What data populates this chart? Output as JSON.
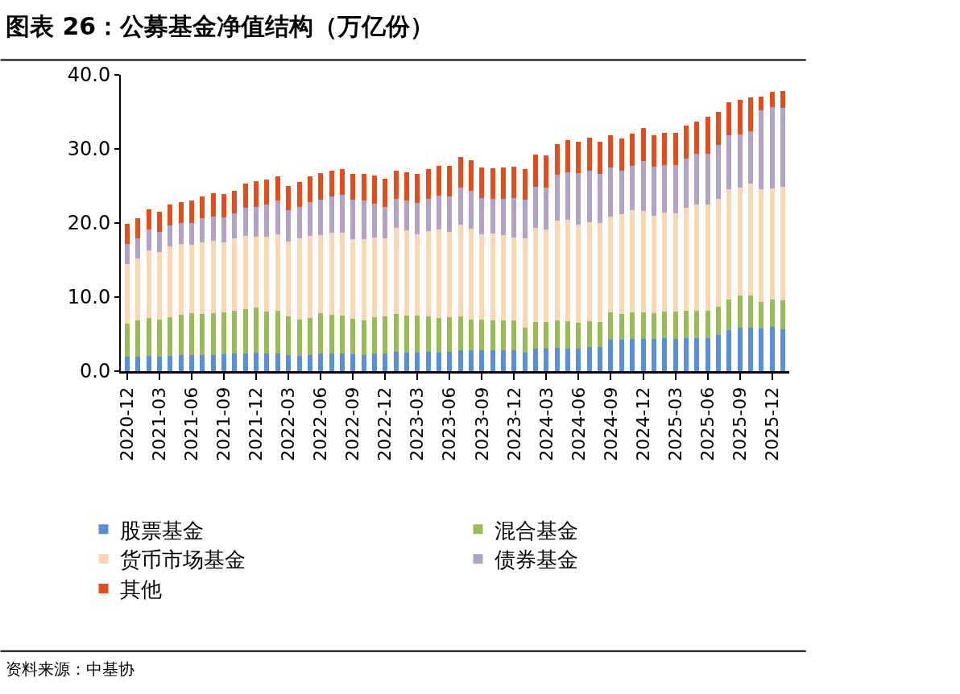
{
  "chart_data": {
    "type": "bar",
    "stacked": true,
    "title": "图表 26：公募基金净值结构（万亿份）",
    "annotations": [
      "资料来源：中基协"
    ],
    "categories": [
      "2020-12",
      null,
      null,
      "2021-03",
      null,
      null,
      "2021-06",
      null,
      null,
      "2021-09",
      null,
      null,
      "2021-12",
      null,
      null,
      "2022-03",
      null,
      null,
      "2022-06",
      null,
      null,
      "2022-09",
      null,
      null,
      "2022-12",
      null,
      null,
      "2023-03",
      null,
      null,
      "2023-06",
      null,
      null,
      "2023-09",
      null,
      null,
      "2023-12",
      null,
      null,
      "2024-03",
      null,
      null,
      "2024-06",
      null,
      null,
      "2024-09",
      null,
      null,
      "2024-12",
      null,
      null,
      "2025-03",
      null,
      null,
      "2025-06",
      null,
      null,
      "2025-09",
      null,
      null,
      "2025-12",
      null
    ],
    "series": [
      {
        "name": "股票基金",
        "color": "#5a8fd8",
        "values": [
          2.0,
          2.0,
          2.1,
          2.0,
          2.1,
          2.2,
          2.2,
          2.2,
          2.2,
          2.3,
          2.4,
          2.4,
          2.5,
          2.4,
          2.4,
          2.2,
          2.1,
          2.2,
          2.4,
          2.4,
          2.4,
          2.3,
          2.2,
          2.4,
          2.4,
          2.6,
          2.5,
          2.5,
          2.6,
          2.5,
          2.6,
          2.8,
          2.8,
          2.8,
          2.8,
          2.8,
          2.8,
          2.5,
          3.0,
          3.0,
          3.2,
          3.0,
          3.0,
          3.3,
          3.3,
          4.2,
          4.2,
          4.4,
          4.4,
          4.4,
          4.5,
          4.4,
          4.5,
          4.5,
          4.5,
          4.9,
          5.5,
          5.9,
          5.9,
          5.8,
          6.0,
          5.7
        ]
      },
      {
        "name": "混合基金",
        "color": "#9bbb59",
        "values": [
          4.4,
          4.9,
          5.1,
          5.0,
          5.2,
          5.4,
          5.6,
          5.5,
          5.6,
          5.6,
          5.8,
          6.0,
          6.1,
          5.6,
          5.7,
          5.2,
          4.9,
          5.0,
          5.4,
          5.2,
          5.1,
          4.8,
          4.7,
          4.9,
          5.0,
          5.1,
          5.0,
          5.0,
          4.8,
          4.7,
          4.7,
          4.6,
          4.2,
          4.2,
          4.0,
          4.0,
          4.0,
          3.4,
          3.6,
          3.6,
          3.7,
          3.7,
          3.5,
          3.4,
          3.3,
          3.7,
          3.5,
          3.5,
          3.5,
          3.4,
          3.5,
          3.6,
          3.6,
          3.6,
          3.6,
          3.8,
          4.2,
          4.3,
          4.3,
          3.6,
          3.7,
          3.9
        ]
      },
      {
        "name": "货币市场基金",
        "color": "#fcd5b5",
        "values": [
          8.1,
          8.3,
          9.1,
          9.1,
          9.6,
          9.6,
          9.3,
          9.7,
          9.8,
          9.5,
          9.7,
          9.9,
          9.5,
          10.1,
          10.4,
          10.1,
          10.9,
          11.1,
          10.6,
          11.1,
          11.2,
          10.7,
          10.9,
          10.7,
          10.5,
          11.6,
          11.5,
          11.0,
          11.5,
          11.9,
          11.5,
          12.4,
          12.2,
          11.5,
          11.8,
          11.6,
          11.2,
          12.0,
          12.8,
          12.5,
          13.4,
          13.7,
          13.3,
          13.4,
          13.4,
          13.0,
          13.5,
          13.8,
          13.7,
          13.2,
          13.4,
          13.3,
          14.0,
          14.4,
          14.4,
          14.6,
          14.9,
          14.6,
          15.1,
          15.2,
          15.0,
          15.3
        ]
      },
      {
        "name": "债券基金",
        "color": "#b3a2c7",
        "values": [
          2.7,
          2.7,
          2.8,
          2.7,
          2.8,
          2.8,
          2.9,
          3.2,
          3.3,
          3.4,
          3.4,
          3.8,
          4.1,
          4.4,
          4.5,
          4.2,
          4.3,
          4.5,
          4.8,
          4.9,
          5.1,
          5.3,
          5.2,
          4.6,
          4.3,
          4.0,
          4.0,
          4.2,
          4.4,
          4.6,
          4.8,
          5.0,
          5.2,
          4.9,
          4.7,
          4.9,
          5.4,
          5.2,
          5.5,
          5.7,
          6.2,
          6.5,
          6.9,
          7.0,
          6.6,
          6.6,
          5.9,
          6.0,
          6.8,
          6.6,
          6.4,
          6.5,
          6.6,
          6.8,
          6.8,
          7.2,
          7.2,
          7.2,
          7.1,
          10.6,
          11.0,
          10.6
        ]
      },
      {
        "name": "其他",
        "color": "#e04e1e",
        "values": [
          2.7,
          2.7,
          2.7,
          2.7,
          2.8,
          2.8,
          3.0,
          3.0,
          3.1,
          3.1,
          3.1,
          3.2,
          3.4,
          3.4,
          3.3,
          3.3,
          3.3,
          3.5,
          3.5,
          3.5,
          3.5,
          3.5,
          3.6,
          3.8,
          3.8,
          3.8,
          3.9,
          3.9,
          4.0,
          4.0,
          4.1,
          4.1,
          4.1,
          4.1,
          4.1,
          4.2,
          4.2,
          4.2,
          4.3,
          4.3,
          4.2,
          4.3,
          4.3,
          4.4,
          4.4,
          4.4,
          4.3,
          4.4,
          4.4,
          4.3,
          4.4,
          4.4,
          4.4,
          4.4,
          5.1,
          4.5,
          4.5,
          4.6,
          4.6,
          1.9,
          2.0,
          2.3
        ]
      }
    ],
    "ylim": [
      0,
      40
    ],
    "yticks": [
      {
        "value": 0,
        "label": "0.0"
      },
      {
        "value": 10,
        "label": "10.0"
      },
      {
        "value": 20,
        "label": "20.0"
      },
      {
        "value": 30,
        "label": "30.0"
      },
      {
        "value": 40,
        "label": "40.0"
      }
    ],
    "legend": "bottom"
  }
}
